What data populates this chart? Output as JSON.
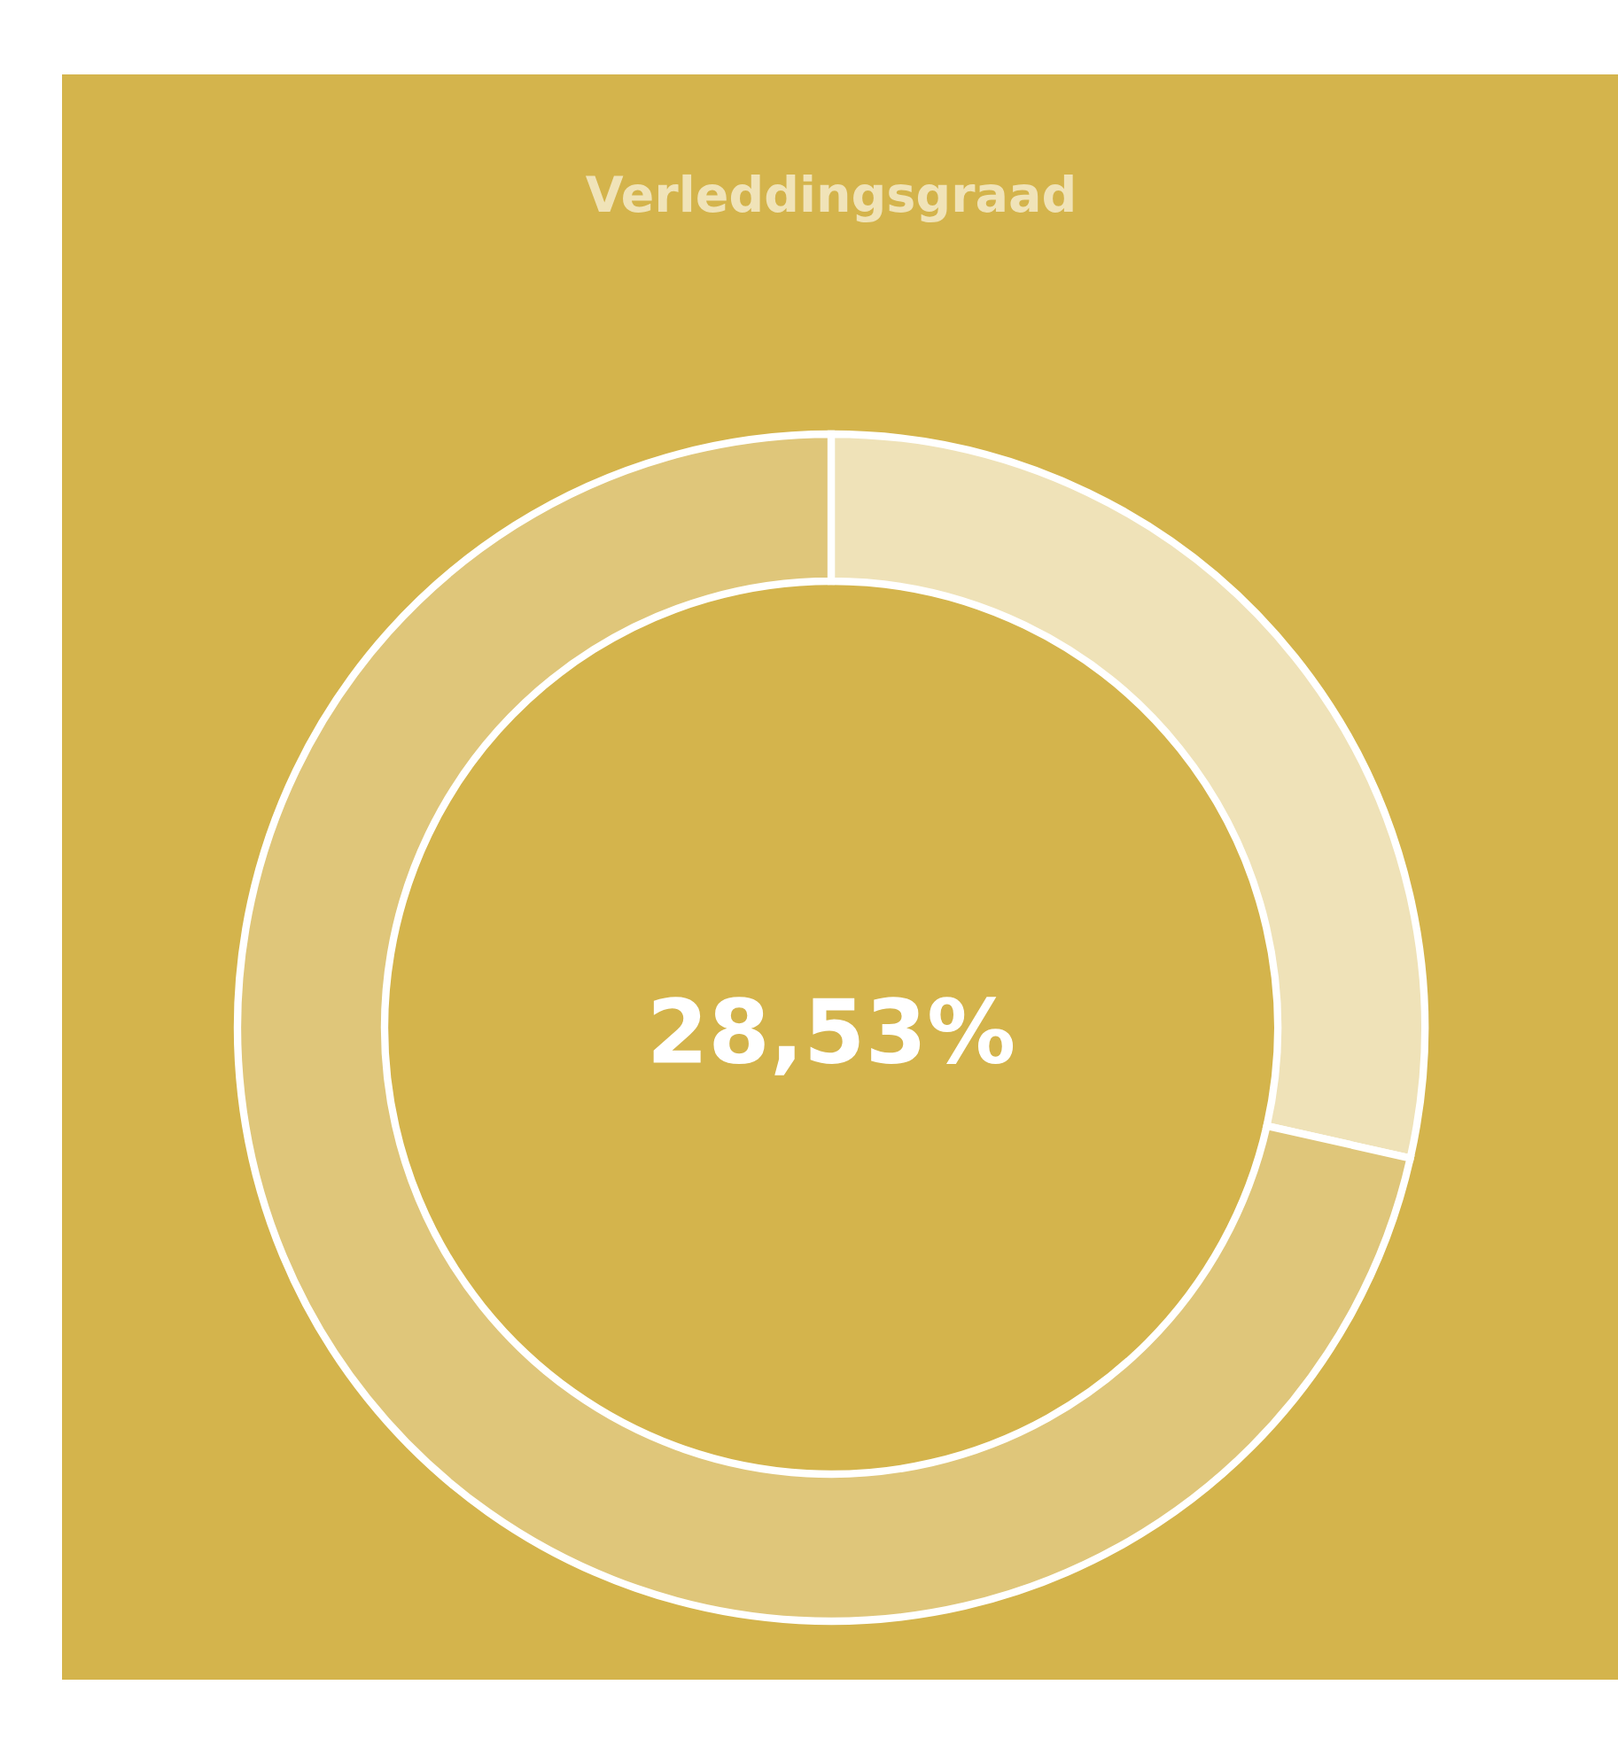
{
  "chart_data": {
    "type": "donut",
    "title": "Verleddingsgraad",
    "categories": [
      null,
      null
    ],
    "values": [
      28.53,
      71.47
    ],
    "colors": [
      "#efe2b8",
      "#dfc67a"
    ],
    "annotations": [
      "28,53%"
    ]
  }
}
